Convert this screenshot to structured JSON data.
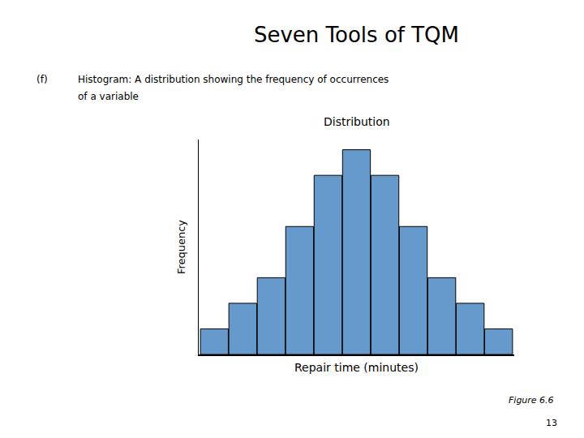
{
  "chart_data": {
    "type": "bar",
    "title": "Seven Tools of TQM",
    "subtitle": [
      "Histogram: A distribution showing the frequency of occurrences",
      "of a variable"
    ],
    "annotations": [
      "(f)",
      "Distribution",
      "Figure 6.6",
      "13"
    ],
    "xlabel": "Repair time (minutes)",
    "ylabel": "Frequency",
    "categories": [
      null,
      null,
      null,
      null,
      null,
      null,
      null,
      null,
      null,
      null,
      null
    ],
    "values": [
      1,
      2,
      3,
      5,
      7,
      8,
      7,
      5,
      3,
      2,
      1
    ],
    "color": "#6699cc",
    "ylim": [
      0,
      8.4
    ],
    "tick_labels": false,
    "grid": false
  }
}
